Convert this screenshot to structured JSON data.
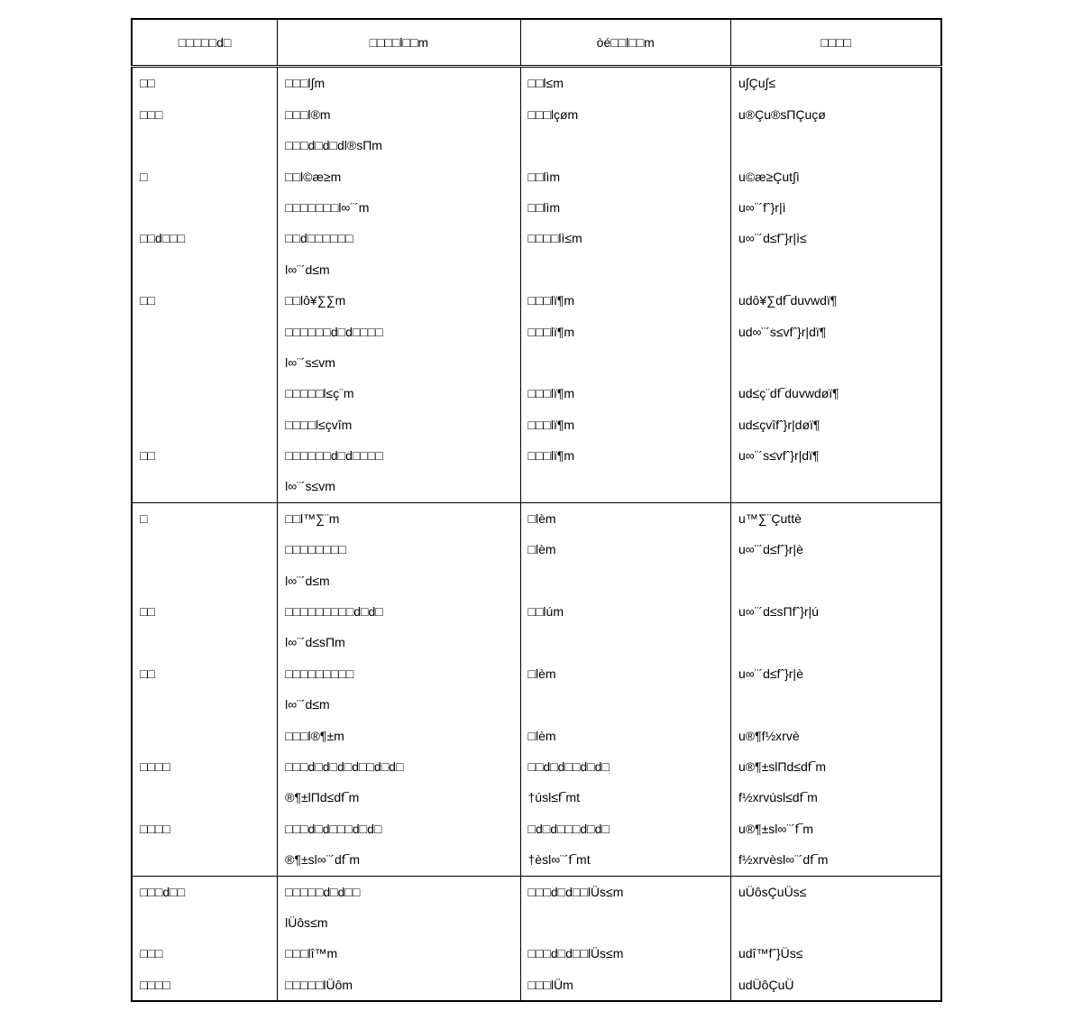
{
  "table": {
    "headers": [
      "□□□□□d□",
      "□□□□l□□m",
      "òé□□l□□m",
      "□□□□"
    ],
    "groups": [
      {
        "rows": [
          {
            "c1": "□□",
            "c2": "□□□l∫m",
            "c3": "□□l≤m",
            "c4": "u∫Çu∫≤"
          },
          {
            "c1": "□□□",
            "c2": "□□□l®m",
            "c3": "□□□lçøm",
            "c4": "u®Çu®sΠÇuçø"
          },
          {
            "c1": "",
            "c2": "□□□d□d□dl®sΠm",
            "c3": "",
            "c4": ""
          },
          {
            "c1": "□",
            "c2": "□□l©æ≥m",
            "c3": "□□lìm",
            "c4": "u©æ≥Çut∫ì"
          },
          {
            "c1": "",
            "c2": "□□□□□□□l∞¨´m",
            "c3": "□□lìm",
            "c4": "u∞¨´fˆ}r|ì"
          },
          {
            "c1": "□□d□□□",
            "c2": "□□d□□□□□□",
            "c3": "□□□□lì≤m",
            "c4": "u∞¨´d≤fˆ}r|ì≤"
          },
          {
            "c1": "",
            "c2": "l∞¨´d≤m",
            "c3": "",
            "c4": ""
          },
          {
            "c1": "□□",
            "c2": "□□lô¥∑∑m",
            "c3": "□□□lï¶m",
            "c4": "udô¥∑df‾duvwdï¶"
          },
          {
            "c1": "",
            "c2": "□□□□□□d□d□□□□",
            "c3": "□□□lï¶m",
            "c4": "ud∞¨´s≤vfˆ}r|dï¶"
          },
          {
            "c1": "",
            "c2": "l∞¨´s≤vm",
            "c3": "",
            "c4": ""
          },
          {
            "c1": "",
            "c2": "□□□□□l≤ç¨m",
            "c3": "□□□lï¶m",
            "c4": "ud≤ç¨df‾duvwdøï¶"
          },
          {
            "c1": "",
            "c2": "□□□□l≤çvîm",
            "c3": "□□□lï¶m",
            "c4": "ud≤çvîfˆ}r|døï¶"
          },
          {
            "c1": "□□",
            "c2": "□□□□□□d□d□□□□",
            "c3": "□□□lï¶m",
            "c4": "u∞¨´s≤vfˆ}r|dï¶"
          },
          {
            "c1": "",
            "c2": "l∞¨´s≤vm",
            "c3": "",
            "c4": ""
          }
        ]
      },
      {
        "rows": [
          {
            "c1": "□",
            "c2": "□□l™∑¨m",
            "c3": "□lèm",
            "c4": "u™∑¨Çuttè"
          },
          {
            "c1": "",
            "c2": "□□□□□□□□",
            "c3": "□lèm",
            "c4": "u∞¨´d≤fˆ}r|è"
          },
          {
            "c1": "",
            "c2": "l∞¨´d≤m",
            "c3": "",
            "c4": ""
          },
          {
            "c1": "□□",
            "c2": "□□□□□□□□□d□d□",
            "c3": "□□lúm",
            "c4": "u∞¨´d≤sΠfˆ}r|ú"
          },
          {
            "c1": "",
            "c2": "l∞¨´d≤sΠm",
            "c3": "",
            "c4": ""
          },
          {
            "c1": "□□",
            "c2": "□□□□□□□□□",
            "c3": "□lèm",
            "c4": "u∞¨´d≤fˆ}r|è"
          },
          {
            "c1": "",
            "c2": "l∞¨´d≤m",
            "c3": "",
            "c4": ""
          },
          {
            "c1": "",
            "c2": "□□□l®¶±m",
            "c3": "□lèm",
            "c4": "u®¶f½xrvè"
          },
          {
            "c1": "□□□□",
            "c2": "□□□d□d□d□d□□d□d□",
            "c3": "□□d□d□□d□d□",
            "c4": "u®¶±slΠd≤df‾m"
          },
          {
            "c1": "",
            "c2": "®¶±lΠd≤df‾m",
            "c3": "†úsl≤f‾mt",
            "c4": "f½xrvúsl≤df‾m"
          },
          {
            "c1": "□□□□",
            "c2": "□□□d□d□□□d□d□",
            "c3": "□d□d□□□d□d□",
            "c4": "u®¶±sl∞¨´f‾m"
          },
          {
            "c1": "",
            "c2": "®¶±sl∞¨´df‾m",
            "c3": "†èsl∞¨´f‾mt",
            "c4": "f½xrvèsl∞¨´df‾m"
          }
        ]
      },
      {
        "rows": [
          {
            "c1": "□□□d□□",
            "c2": "□□□□□d□d□□",
            "c3": "□□□d□d□□lÜs≤m",
            "c4": "uÜôsÇuÜs≤"
          },
          {
            "c1": "",
            "c2": "lÜôs≤m",
            "c3": "",
            "c4": ""
          },
          {
            "c1": "□□□",
            "c2": "□□□lî™m",
            "c3": "□□□d□d□□lÜs≤m",
            "c4": "udî™fˆ}Üs≤"
          },
          {
            "c1": "□□□□",
            "c2": "□□□□□lÜôm",
            "c3": "□□□lÜm",
            "c4": "udÜôÇuÜ"
          }
        ]
      }
    ],
    "border_color": "#000000",
    "background_color": "#ffffff",
    "font_size": 14,
    "col_widths": [
      "18%",
      "30%",
      "26%",
      "26%"
    ]
  }
}
